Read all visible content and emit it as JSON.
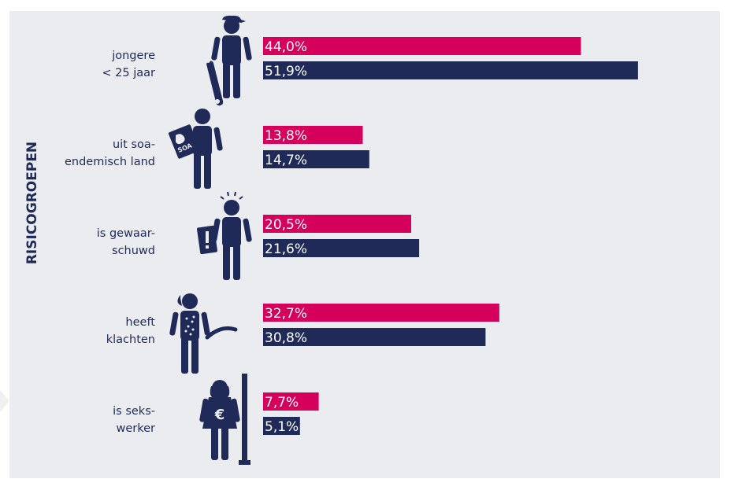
{
  "colors": {
    "panel": "#ebecf0",
    "series_a": "#d4005b",
    "series_b": "#1f2a58",
    "icon": "#1f2a58",
    "label_text": "#1f2a58",
    "bar_text": "#ffffff"
  },
  "icons": [
    "skateboarder-icon",
    "globe-soa-icon",
    "warning-sign-icon",
    "sick-person-icon",
    "sex-worker-streetlamp-icon"
  ],
  "chart_data": {
    "type": "bar",
    "orientation": "horizontal",
    "ylabel": "RISICOGROEPEN",
    "categories": [
      [
        "jongere",
        "< 25 jaar"
      ],
      [
        "uit soa-",
        "endemisch land"
      ],
      [
        "is gewaar-",
        "schuwd"
      ],
      [
        "heeft",
        "klachten"
      ],
      [
        "is seks-",
        "werker"
      ]
    ],
    "series": [
      {
        "color": "#d4005b",
        "values": [
          44.0,
          13.8,
          20.5,
          32.7,
          7.7
        ],
        "labels": [
          "44,0%",
          "13,8%",
          "20,5%",
          "32,7%",
          "7,7%"
        ]
      },
      {
        "color": "#1f2a58",
        "values": [
          51.9,
          14.7,
          21.6,
          30.8,
          5.1
        ],
        "labels": [
          "51,9%",
          "14,7%",
          "21,6%",
          "30,8%",
          "5,1%"
        ]
      }
    ],
    "xlim": [
      0,
      60
    ],
    "grid": false,
    "legend": "none"
  }
}
